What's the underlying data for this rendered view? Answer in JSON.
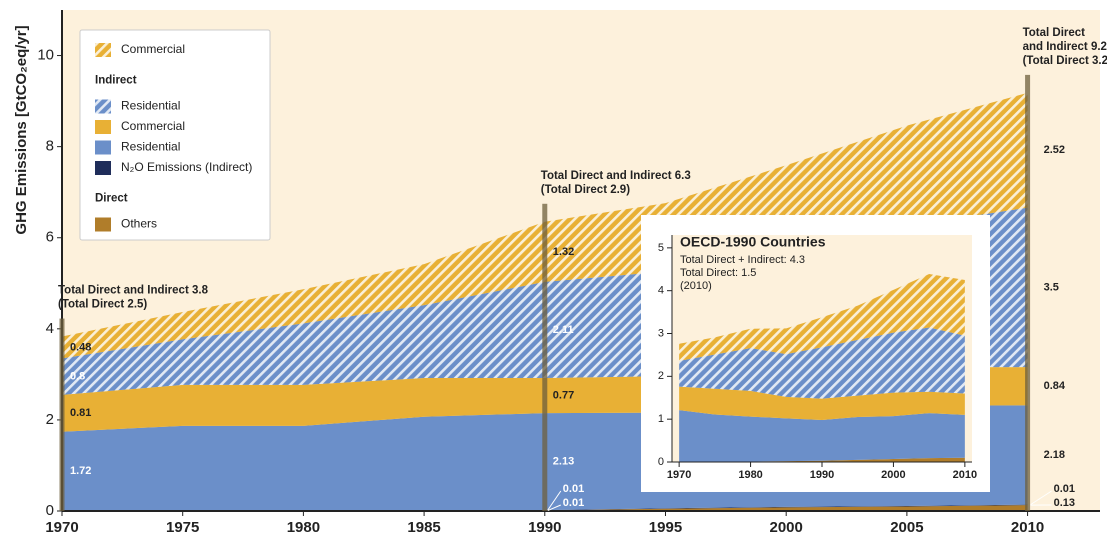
{
  "chart_data": [
    {
      "type": "stacked_area",
      "ylabel": "GHG Emissions [GtCO₂eq/yr]",
      "x": [
        1970,
        1975,
        1980,
        1985,
        1990,
        1995,
        2000,
        2005,
        2010
      ],
      "xlim": [
        1970,
        2013
      ],
      "ylim": [
        0,
        11
      ],
      "xticks": [
        1970,
        1975,
        1980,
        1985,
        1990,
        1995,
        2000,
        2005,
        2010
      ],
      "yticks": [
        0,
        2,
        4,
        6,
        8,
        10
      ],
      "background": "#fdf1dc",
      "series": [
        {
          "name": "Others",
          "group": "Direct",
          "color": "#b07d2a",
          "hatched": false,
          "values": [
            0.01,
            0.01,
            0.01,
            0.01,
            0.01,
            0.05,
            0.08,
            0.1,
            0.13
          ]
        },
        {
          "name": "N₂O Emissions (Indirect)",
          "color": "#1f2d5a",
          "hatched": false,
          "values": [
            0.01,
            0.01,
            0.01,
            0.01,
            0.01,
            0.01,
            0.01,
            0.01,
            0.01
          ]
        },
        {
          "name": "Residential",
          "color": "#6b8fc9",
          "hatched": false,
          "values": [
            1.72,
            1.85,
            1.85,
            2.05,
            2.13,
            2.1,
            2.1,
            2.2,
            2.18
          ]
        },
        {
          "name": "Commercial",
          "color": "#e8b035",
          "hatched": false,
          "values": [
            0.81,
            0.9,
            0.9,
            0.85,
            0.77,
            0.8,
            0.8,
            0.85,
            0.84
          ]
        },
        {
          "name": "Residential",
          "group": "Indirect",
          "color": "#6b8fc9",
          "hatched": true,
          "values": [
            0.8,
            1.0,
            1.35,
            1.6,
            2.11,
            2.3,
            2.6,
            3.1,
            3.5
          ]
        },
        {
          "name": "Commercial",
          "color": "#e8b035",
          "hatched": true,
          "values": [
            0.48,
            0.6,
            0.75,
            0.9,
            1.32,
            1.5,
            2.0,
            2.2,
            2.52
          ]
        }
      ],
      "annotations": [
        [
          "Total Direct and Indirect 3.8",
          "(Total Direct 2.5)"
        ],
        [
          "Total Direct and Indirect 6.3",
          "(Total Direct 2.9)"
        ],
        [
          "Total Direct",
          "and Indirect 9.2",
          "(Total Direct 3.2)"
        ]
      ]
    },
    {
      "type": "stacked_area",
      "title": "OECD-1990 Countries",
      "subtitle": [
        "Total Direct + Indirect: 4.3",
        "Total Direct: 1.5",
        "(2010)"
      ],
      "x": [
        1970,
        1975,
        1980,
        1985,
        1990,
        1995,
        2000,
        2005,
        2010
      ],
      "xlim": [
        1969,
        2011
      ],
      "ylim": [
        0,
        5.3
      ],
      "xticks": [
        1970,
        1980,
        1990,
        2000,
        2010
      ],
      "yticks": [
        0,
        1,
        2,
        3,
        4,
        5
      ],
      "background": "#fdf1dc",
      "series": [
        {
          "color": "#b07d2a",
          "hatched": false,
          "values": [
            0.01,
            0.01,
            0.01,
            0.02,
            0.03,
            0.05,
            0.07,
            0.09,
            0.1
          ]
        },
        {
          "color": "#6b8fc9",
          "hatched": false,
          "values": [
            1.2,
            1.1,
            1.05,
            1.0,
            0.95,
            1.0,
            1.0,
            1.05,
            1.0
          ]
        },
        {
          "color": "#e8b035",
          "hatched": false,
          "values": [
            0.55,
            0.6,
            0.6,
            0.5,
            0.5,
            0.5,
            0.55,
            0.5,
            0.5
          ]
        },
        {
          "color": "#6b8fc9",
          "hatched": true,
          "values": [
            0.6,
            0.8,
            1.0,
            1.0,
            1.2,
            1.3,
            1.4,
            1.5,
            1.35
          ]
        },
        {
          "color": "#e8b035",
          "hatched": true,
          "values": [
            0.4,
            0.4,
            0.45,
            0.6,
            0.7,
            0.8,
            1.0,
            1.25,
            1.3
          ]
        }
      ]
    }
  ]
}
